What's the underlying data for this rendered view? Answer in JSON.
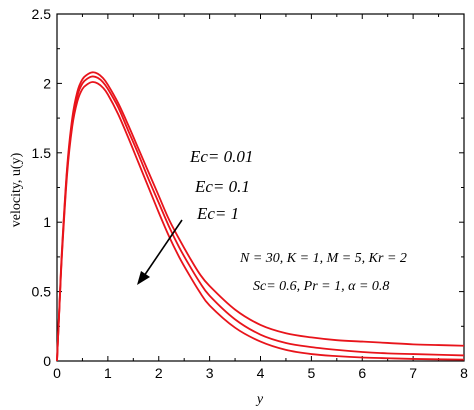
{
  "chart_data": {
    "type": "line",
    "title": "",
    "xlabel": "y",
    "ylabel": "velocity,  u(y)",
    "xlim": [
      0,
      8
    ],
    "ylim": [
      0,
      2.5
    ],
    "xticks": [
      0,
      1,
      2,
      3,
      4,
      5,
      6,
      7,
      8
    ],
    "yticks": [
      0,
      0.5,
      1,
      1.5,
      2,
      2.5
    ],
    "xtick_labels": [
      "0",
      "1",
      "2",
      "3",
      "4",
      "5",
      "6",
      "7",
      "8"
    ],
    "ytick_labels": [
      "0",
      "0.5",
      "1",
      "1.5",
      "2",
      "2.5"
    ],
    "grid": false,
    "line_color": "#e8141b",
    "series": [
      {
        "label": "Ec= 0.01",
        "x": [
          0,
          0.05,
          0.1,
          0.2,
          0.3,
          0.4,
          0.5,
          0.6,
          0.7,
          0.8,
          0.9,
          1.0,
          1.2,
          1.4,
          1.6,
          1.8,
          2.0,
          2.2,
          2.4,
          2.6,
          2.8,
          3.0,
          3.5,
          4.0,
          4.5,
          5.0,
          5.5,
          6.0,
          6.5,
          7.0,
          7.5,
          8.0
        ],
        "values": [
          0,
          0.42,
          0.82,
          1.4,
          1.75,
          1.94,
          2.03,
          2.065,
          2.08,
          2.07,
          2.04,
          1.99,
          1.86,
          1.7,
          1.53,
          1.36,
          1.19,
          1.02,
          0.88,
          0.75,
          0.63,
          0.54,
          0.37,
          0.26,
          0.2,
          0.17,
          0.15,
          0.14,
          0.13,
          0.12,
          0.115,
          0.11
        ]
      },
      {
        "label": "Ec= 0.1",
        "x": [
          0,
          0.05,
          0.1,
          0.2,
          0.3,
          0.4,
          0.5,
          0.6,
          0.7,
          0.8,
          0.9,
          1.0,
          1.2,
          1.4,
          1.6,
          1.8,
          2.0,
          2.2,
          2.4,
          2.6,
          2.8,
          3.0,
          3.5,
          4.0,
          4.5,
          5.0,
          5.5,
          6.0,
          6.5,
          7.0,
          7.5,
          8.0
        ],
        "values": [
          0,
          0.41,
          0.8,
          1.38,
          1.72,
          1.91,
          2.0,
          2.035,
          2.05,
          2.04,
          2.01,
          1.96,
          1.83,
          1.66,
          1.49,
          1.31,
          1.14,
          0.97,
          0.82,
          0.69,
          0.57,
          0.47,
          0.3,
          0.19,
          0.13,
          0.1,
          0.08,
          0.065,
          0.055,
          0.05,
          0.045,
          0.04
        ]
      },
      {
        "label": "Ec= 1",
        "x": [
          0,
          0.05,
          0.1,
          0.2,
          0.3,
          0.4,
          0.5,
          0.6,
          0.7,
          0.8,
          0.9,
          1.0,
          1.2,
          1.4,
          1.6,
          1.8,
          2.0,
          2.2,
          2.4,
          2.6,
          2.8,
          3.0,
          3.5,
          4.0,
          4.5,
          5.0,
          5.5,
          6.0,
          6.5,
          7.0,
          7.5,
          8.0
        ],
        "values": [
          0,
          0.4,
          0.78,
          1.35,
          1.69,
          1.87,
          1.96,
          1.995,
          2.01,
          2.0,
          1.97,
          1.92,
          1.78,
          1.61,
          1.43,
          1.25,
          1.07,
          0.9,
          0.75,
          0.62,
          0.5,
          0.4,
          0.24,
          0.14,
          0.08,
          0.05,
          0.035,
          0.025,
          0.02,
          0.015,
          0.012,
          0.01
        ]
      }
    ],
    "annotations": {
      "ec_labels": [
        "Ec= 0.01",
        "Ec= 0.1",
        "Ec= 1"
      ],
      "params_line1": "N = 30, K = 1, M = 5, Kr = 2",
      "params_line2": "Sc= 0.6, Pr = 1, α = 0.8"
    }
  }
}
